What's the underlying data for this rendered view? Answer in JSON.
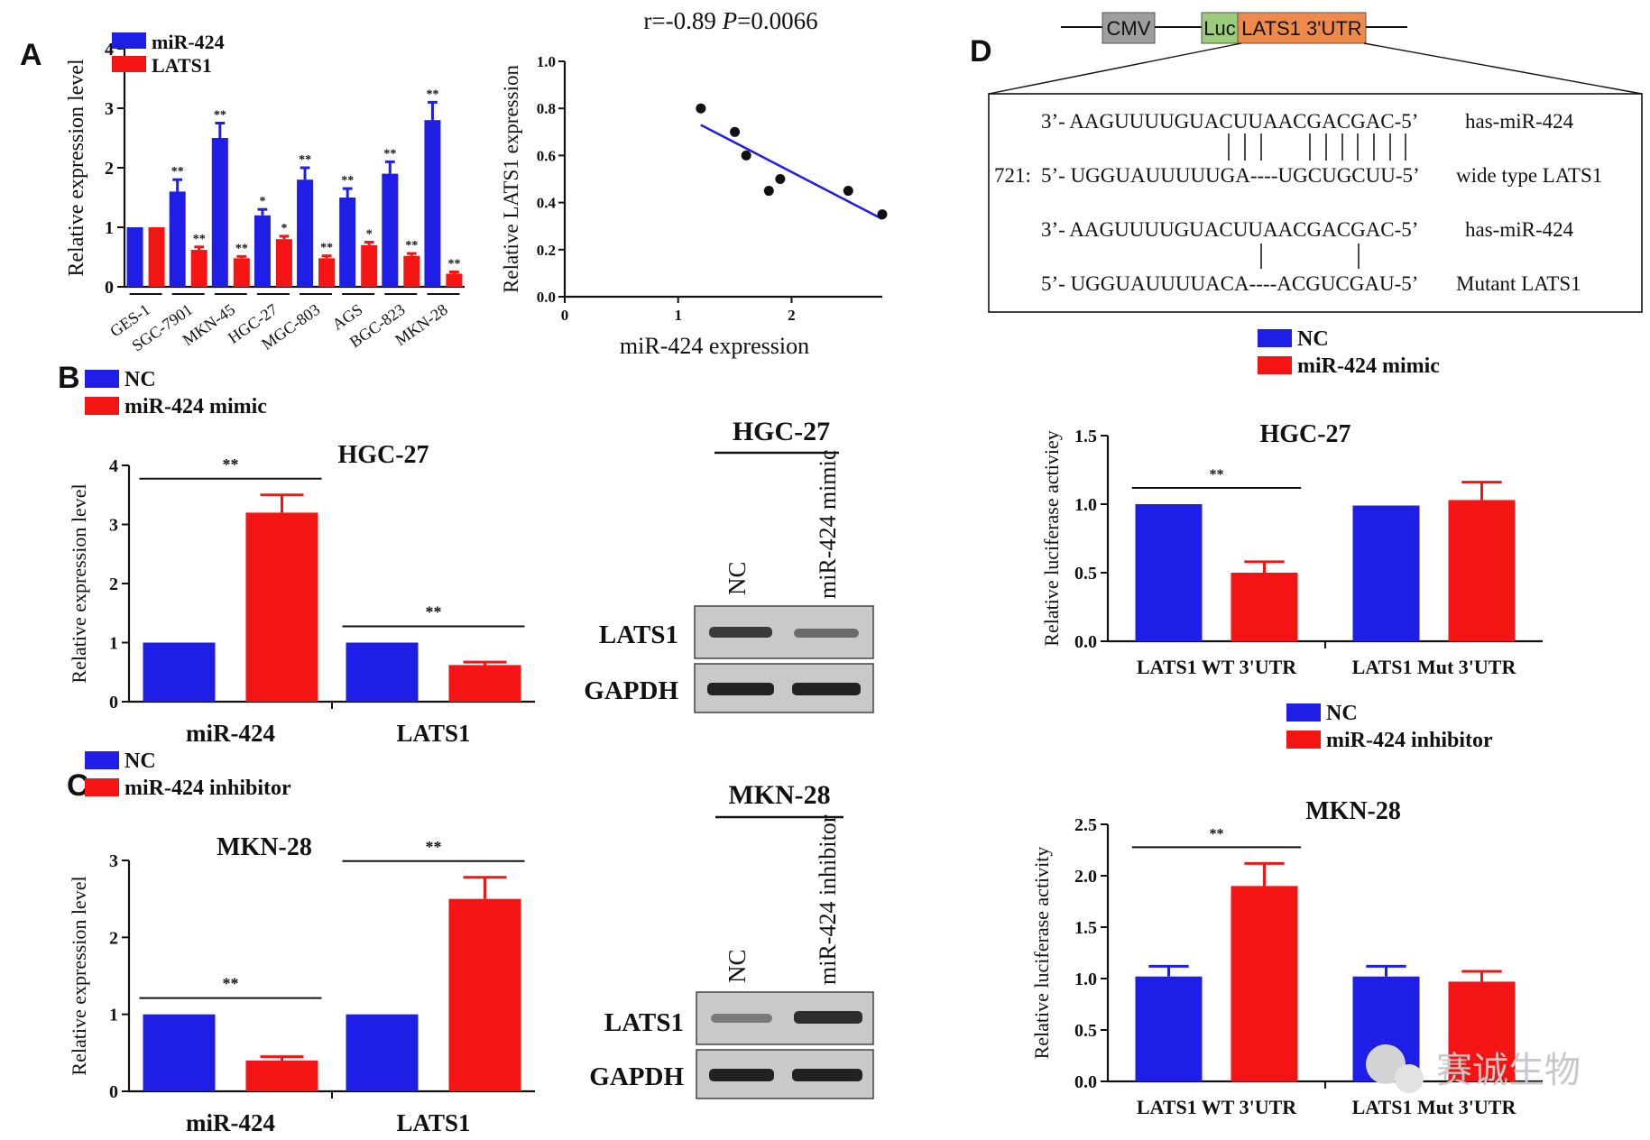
{
  "colors": {
    "blue": "#1e1ee6",
    "red": "#f51414",
    "black": "#111111"
  },
  "panels": {
    "A": {
      "letter": "A"
    },
    "B": {
      "letter": "B"
    },
    "C": {
      "letter": "C"
    },
    "D": {
      "letter": "D"
    }
  },
  "chart_data": [
    {
      "id": "A-bar",
      "type": "bar",
      "ylabel": "Relative expression level",
      "ylim": [
        0,
        4
      ],
      "yticks": [
        0,
        1,
        2,
        3,
        4
      ],
      "categories": [
        "GES-1",
        "SGC-7901",
        "MKN-45",
        "HGC-27",
        "MGC-803",
        "AGS",
        "BGC-823",
        "MKN-28"
      ],
      "series": [
        {
          "name": "miR-424",
          "color": "#1e1ee6",
          "values": [
            1.0,
            1.6,
            2.5,
            1.2,
            1.8,
            1.5,
            1.9,
            2.8
          ],
          "errors": [
            0,
            0.2,
            0.25,
            0.1,
            0.2,
            0.15,
            0.2,
            0.3
          ],
          "sig": [
            "",
            "**",
            "**",
            "*",
            "**",
            "**",
            "**",
            "**"
          ]
        },
        {
          "name": "LATS1",
          "color": "#f51414",
          "values": [
            1.0,
            0.62,
            0.48,
            0.8,
            0.48,
            0.7,
            0.52,
            0.22
          ],
          "errors": [
            0,
            0.05,
            0.03,
            0.05,
            0.04,
            0.05,
            0.04,
            0.03
          ],
          "sig": [
            "",
            "**",
            "**",
            "*",
            "**",
            "*",
            "**",
            "**"
          ]
        }
      ],
      "legend": "top-left"
    },
    {
      "id": "A-scatter",
      "type": "scatter",
      "title_r": "r=-0.89",
      "title_p_label": "P",
      "title_p_value": "=0.0066",
      "xlabel": "miR-424 expression",
      "ylabel": "Relative LATS1 expression",
      "xlim": [
        0,
        2.8
      ],
      "ylim": [
        0,
        1.0
      ],
      "xticks": [
        0,
        1,
        2
      ],
      "yticks": [
        0.0,
        0.2,
        0.4,
        0.6,
        0.8,
        1.0
      ],
      "ytick_labels": [
        "0.0",
        "0.2",
        "0.4",
        "0.6",
        "0.8",
        "1.0"
      ],
      "x": [
        1.2,
        1.5,
        1.6,
        1.8,
        1.9,
        2.5,
        2.8
      ],
      "y": [
        0.8,
        0.7,
        0.6,
        0.45,
        0.5,
        0.45,
        0.35
      ],
      "fit_line": {
        "x": [
          1.2,
          2.8
        ],
        "y": [
          0.73,
          0.33
        ]
      }
    },
    {
      "id": "B-bar",
      "type": "bar",
      "title": "HGC-27",
      "ylabel": "Relative expression level",
      "ylim": [
        0,
        4
      ],
      "yticks": [
        0,
        1,
        2,
        3,
        4
      ],
      "categories": [
        "miR-424",
        "LATS1"
      ],
      "series": [
        {
          "name": "NC",
          "color": "#1e1ee6",
          "values": [
            1.0,
            1.0
          ],
          "errors": [
            0,
            0
          ]
        },
        {
          "name": "miR-424 mimic",
          "color": "#f51414",
          "values": [
            3.2,
            0.62
          ],
          "errors": [
            0.3,
            0.05
          ]
        }
      ],
      "sig": [
        "**",
        "**"
      ],
      "legend": "top-left"
    },
    {
      "id": "C-bar",
      "type": "bar",
      "title": "MKN-28",
      "ylabel": "Relative expression level",
      "ylim": [
        0,
        3
      ],
      "yticks": [
        0,
        1,
        2,
        3
      ],
      "categories": [
        "miR-424",
        "LATS1"
      ],
      "series": [
        {
          "name": "NC",
          "color": "#1e1ee6",
          "values": [
            1.0,
            1.0
          ],
          "errors": [
            0,
            0
          ]
        },
        {
          "name": "miR-424 inhibitor",
          "color": "#f51414",
          "values": [
            0.4,
            2.5
          ],
          "errors": [
            0.05,
            0.28
          ]
        }
      ],
      "sig": [
        "**",
        "**"
      ],
      "legend": "top-left"
    },
    {
      "id": "D-luc-HGC",
      "type": "bar",
      "title": "HGC-27",
      "ylabel": "Relative luciferase activiey",
      "ylim": [
        0,
        1.5
      ],
      "yticks": [
        0.0,
        0.5,
        1.0,
        1.5
      ],
      "ytick_labels": [
        "0.0",
        "0.5",
        "1.0",
        "1.5"
      ],
      "categories": [
        "LATS1 WT 3'UTR",
        "LATS1 Mut 3'UTR"
      ],
      "series": [
        {
          "name": "NC",
          "color": "#1e1ee6",
          "values": [
            1.0,
            0.99
          ],
          "errors": [
            0,
            0
          ]
        },
        {
          "name": "miR-424 mimic",
          "color": "#f51414",
          "values": [
            0.5,
            1.03
          ],
          "errors": [
            0.08,
            0.13
          ]
        }
      ],
      "sig": [
        "**",
        ""
      ],
      "legend": "top-left"
    },
    {
      "id": "D-luc-MKN",
      "type": "bar",
      "title": "MKN-28",
      "ylabel": "Relative  luciferase activity",
      "ylim": [
        0,
        2.5
      ],
      "yticks": [
        0.0,
        0.5,
        1.0,
        1.5,
        2.0,
        2.5
      ],
      "ytick_labels": [
        "0.0",
        "0.5",
        "1.0",
        "1.5",
        "2.0",
        "2.5"
      ],
      "categories": [
        "LATS1 WT 3'UTR",
        "LATS1 Mut 3'UTR"
      ],
      "series": [
        {
          "name": "NC",
          "color": "#1e1ee6",
          "values": [
            1.02,
            1.02
          ],
          "errors": [
            0.1,
            0.1
          ]
        },
        {
          "name": "miR-424 inhibitor",
          "color": "#f51414",
          "values": [
            1.9,
            0.97
          ],
          "errors": [
            0.22,
            0.1
          ]
        }
      ],
      "sig": [
        "**",
        ""
      ],
      "legend": "top-left"
    }
  ],
  "blots": {
    "B": {
      "cell": "HGC-27",
      "lanes": [
        "NC",
        "miR-424 mimic"
      ],
      "bands": [
        "LATS1",
        "GAPDH"
      ]
    },
    "C": {
      "cell": "MKN-28",
      "lanes": [
        "NC",
        "miR-424 inhibitor"
      ],
      "bands": [
        "LATS1",
        "GAPDH"
      ]
    }
  },
  "construct": {
    "cmv": "CMV",
    "luc": "Luc",
    "utr": "LATS1 3'UTR"
  },
  "sequences": {
    "row1_seq": "3’- AAGUUUUGUACUUAACGACGAC-5’",
    "row1_label": "has-miR-424",
    "row2_pos": "721:",
    "row2_seq": "5’- UGGUAUUUUUGA----UGCUGCUU-5’",
    "row2_label": "wide type LATS1",
    "row3_seq": "3’- AAGUUUUGUACUUAACGACGAC-5’",
    "row3_label": "has-miR-424",
    "row4_seq": "5’- UGGUAUUUUACA----ACGUCGAU-5’",
    "row4_label": "Mutant LATS1"
  },
  "watermark": {
    "text": "赛诚生物"
  }
}
